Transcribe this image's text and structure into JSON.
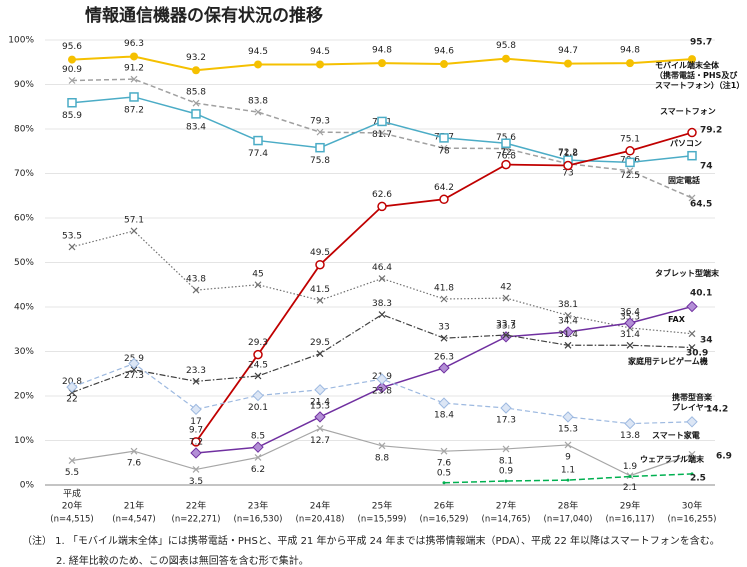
{
  "chart_data": {
    "type": "line",
    "title": "情報通信機器の保有状況の推移",
    "era_label": "平成",
    "categories": [
      "20年",
      "21年",
      "22年",
      "23年",
      "24年",
      "25年",
      "26年",
      "27年",
      "28年",
      "29年",
      "30年"
    ],
    "sample_sizes": [
      "(n=4,515)",
      "(n=4,547)",
      "(n=22,271)",
      "(n=16,530)",
      "(n=20,418)",
      "(n=15,599)",
      "(n=16,529)",
      "(n=14,765)",
      "(n=17,040)",
      "(n=16,117)",
      "(n=16,255)"
    ],
    "ylim": [
      0,
      100
    ],
    "yticks": [
      {
        "value": 0,
        "label": "0%"
      },
      {
        "value": 10,
        "label": "10%"
      },
      {
        "value": 20,
        "label": "20%"
      },
      {
        "value": 30,
        "label": "30%"
      },
      {
        "value": 40,
        "label": "40%"
      },
      {
        "value": 50,
        "label": "50%"
      },
      {
        "value": 60,
        "label": "60%"
      },
      {
        "value": 70,
        "label": "70%"
      },
      {
        "value": 80,
        "label": "80%"
      },
      {
        "value": 90,
        "label": "90%"
      },
      {
        "value": 100,
        "label": "100%"
      }
    ],
    "grid": true,
    "series": [
      {
        "name": "モバイル端末全体\n（携帯電話・PHS及び\nスマートフォン）（注1）",
        "color": "#f5c000",
        "values": [
          95.6,
          96.3,
          93.2,
          94.5,
          94.5,
          94.8,
          94.6,
          95.8,
          94.7,
          94.8,
          95.7
        ]
      },
      {
        "name": "固定電話",
        "color": "#a0a0a0",
        "values": [
          90.9,
          91.2,
          85.8,
          83.8,
          79.3,
          79.1,
          75.7,
          75.6,
          72.2,
          70.6,
          64.5
        ]
      },
      {
        "name": "パソコン",
        "color": "#4bacc6",
        "values": [
          85.9,
          87.2,
          83.4,
          77.4,
          75.8,
          81.7,
          78.0,
          76.8,
          73.0,
          72.5,
          74.0
        ]
      },
      {
        "name": "スマートフォン",
        "color": "#c00000",
        "values": [
          null,
          null,
          9.7,
          29.3,
          49.5,
          62.6,
          64.2,
          72.0,
          71.8,
          75.1,
          79.2
        ]
      },
      {
        "name": "FAX",
        "color": "#707070",
        "values": [
          53.5,
          57.1,
          43.8,
          45.0,
          41.5,
          46.4,
          41.8,
          42.0,
          38.1,
          35.3,
          34.0
        ]
      },
      {
        "name": "タブレット型端末",
        "color": "#7030a0",
        "values": [
          null,
          null,
          7.2,
          8.5,
          15.3,
          21.9,
          26.3,
          33.3,
          34.4,
          36.4,
          40.1
        ]
      },
      {
        "name": "家庭用テレビゲーム機",
        "color": "#404040",
        "values": [
          20.8,
          25.9,
          23.3,
          24.5,
          29.5,
          38.3,
          33.0,
          33.7,
          31.4,
          31.4,
          30.9
        ]
      },
      {
        "name": "携帯型音楽\nプレイヤー",
        "color": "#9db9e0",
        "values": [
          22.0,
          27.3,
          17.0,
          20.1,
          21.4,
          23.8,
          18.4,
          17.3,
          15.3,
          13.8,
          14.2
        ]
      },
      {
        "name": "スマート家電",
        "color": "#a6a6a6",
        "values": [
          5.5,
          7.6,
          3.5,
          6.2,
          12.7,
          8.8,
          7.6,
          8.1,
          9.0,
          2.1,
          6.9
        ]
      },
      {
        "name": "ウェアラブル端末",
        "color": "#00b050",
        "values": [
          null,
          null,
          null,
          null,
          null,
          null,
          0.5,
          0.9,
          1.1,
          1.9,
          2.5
        ]
      }
    ],
    "notes": [
      "（注） 1. 「モバイル端末全体」には携帯電話・PHSと、平成 21 年から平成 24 年までは携帯情報端末（PDA）、平成 22 年以降はスマートフォンを含む。",
      "2. 経年比較のため、この図表は無回答を含む形で集計。"
    ]
  }
}
